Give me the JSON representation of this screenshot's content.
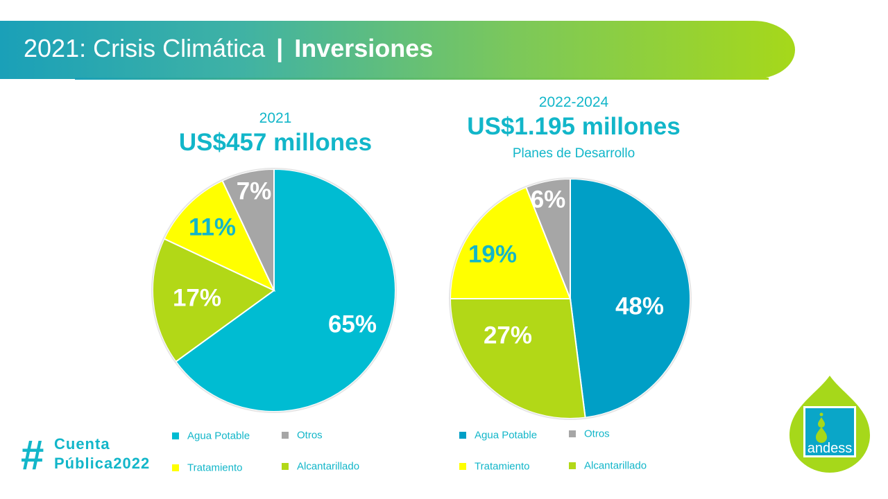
{
  "header": {
    "title_light": "2021: Crisis Climática",
    "title_sep": "|",
    "title_bold": "Inversiones"
  },
  "colors": {
    "banner_start": "#1aa0b8",
    "banner_end": "#a6d81a",
    "accent_text": "#12b6c9"
  },
  "chart_data": [
    {
      "type": "pie",
      "title": "2021",
      "subtitle": "US$457 millones",
      "categories": [
        "Agua Potable",
        "Alcantarillado",
        "Tratamiento",
        "Otros"
      ],
      "values": [
        65,
        17,
        11,
        7
      ],
      "labels": [
        "65%",
        "17%",
        "11%",
        "7%"
      ],
      "colors": [
        "#00bcd2",
        "#b2d817",
        "#ffff00",
        "#a6a6a6"
      ],
      "label_colors": [
        "#ffffff",
        "#ffffff",
        "#12b6c9",
        "#ffffff"
      ],
      "legend": [
        {
          "label": "Agua Potable",
          "color": "#00bcd2"
        },
        {
          "label": "Otros",
          "color": "#a6a6a6"
        },
        {
          "label": "Tratamiento",
          "color": "#ffff00"
        },
        {
          "label": "Alcantarillado",
          "color": "#b2d817"
        }
      ],
      "legend_position": "bottom"
    },
    {
      "type": "pie",
      "title": "2022-2024",
      "subtitle": "US$1.195 millones",
      "note": "Planes de Desarrollo",
      "categories": [
        "Agua Potable",
        "Alcantarillado",
        "Tratamiento",
        "Otros"
      ],
      "values": [
        48,
        27,
        19,
        6
      ],
      "labels": [
        "48%",
        "27%",
        "19%",
        "6%"
      ],
      "colors": [
        "#009fc6",
        "#b2d817",
        "#ffff00",
        "#a6a6a6"
      ],
      "label_colors": [
        "#ffffff",
        "#ffffff",
        "#12b6c9",
        "#ffffff"
      ],
      "legend": [
        {
          "label": "Agua Potable",
          "color": "#009fc6"
        },
        {
          "label": "Otros",
          "color": "#a6a6a6"
        },
        {
          "label": "Tratamiento",
          "color": "#ffff00"
        },
        {
          "label": "Alcantarillado",
          "color": "#b2d817"
        }
      ],
      "legend_position": "bottom"
    }
  ],
  "footer": {
    "hash_sign": "#",
    "hashtag_line1": "Cuenta",
    "hashtag_line2": "Pública2022",
    "logo_text": "andess"
  }
}
